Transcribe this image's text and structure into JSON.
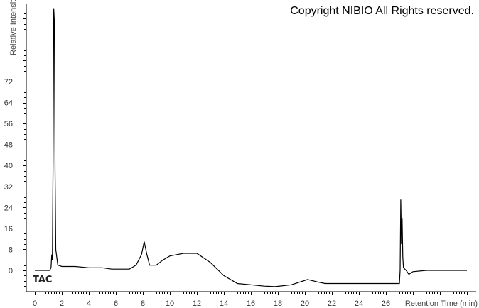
{
  "copyright": "Copyright NIBIO All Rights reserved.",
  "chart_data": {
    "type": "line",
    "title": "",
    "trace_label": "TAC",
    "xlabel": "Retention Time (min)",
    "ylabel": "Relative Intensity",
    "xlim": [
      0,
      32.5
    ],
    "ylim": [
      -8,
      102
    ],
    "xticks": [
      0,
      2,
      4,
      6,
      8,
      10,
      12,
      14,
      16,
      18,
      20,
      22,
      24,
      26
    ],
    "xtick_labels": [
      "0",
      "2",
      "4",
      "6",
      "8",
      "10",
      "12",
      "14",
      "16",
      "18",
      "20",
      "22",
      "24",
      "26"
    ],
    "yticks": [
      0,
      8,
      16,
      24,
      32,
      40,
      48,
      56,
      64,
      72
    ],
    "ytick_labels": [
      "0",
      "8",
      "16",
      "24",
      "32",
      "40",
      "48",
      "56",
      "64",
      "72"
    ],
    "grid": false,
    "line_color": "#000000",
    "series": [
      {
        "x": [
          0,
          1.1,
          1.2,
          1.25,
          1.3,
          1.35,
          1.4,
          1.45,
          1.5,
          1.55,
          1.7,
          2,
          3,
          4,
          5,
          5.7,
          7,
          7.5,
          7.9,
          8.1,
          8.3,
          8.5,
          9,
          9.5,
          10,
          11,
          12,
          13,
          14,
          15,
          16,
          17,
          17.8,
          19,
          20.2,
          21,
          21.5,
          27,
          27.05,
          27.1,
          27.15,
          27.2,
          27.25,
          27.3,
          27.5,
          27.7,
          28,
          29,
          30,
          32
        ],
        "y": [
          0,
          0,
          1,
          6,
          4,
          42,
          100,
          95,
          37,
          8,
          2,
          1.5,
          1.5,
          1,
          1,
          0.5,
          0.5,
          2,
          6,
          11,
          6,
          2,
          2,
          4,
          5.5,
          6.5,
          6.5,
          3,
          -2,
          -5,
          -5.5,
          -6,
          -6.2,
          -5.5,
          -3.5,
          -4.5,
          -5,
          -5,
          0,
          27,
          10,
          20,
          5,
          1,
          0,
          -1.5,
          -0.5,
          0,
          0,
          0
        ]
      }
    ]
  }
}
